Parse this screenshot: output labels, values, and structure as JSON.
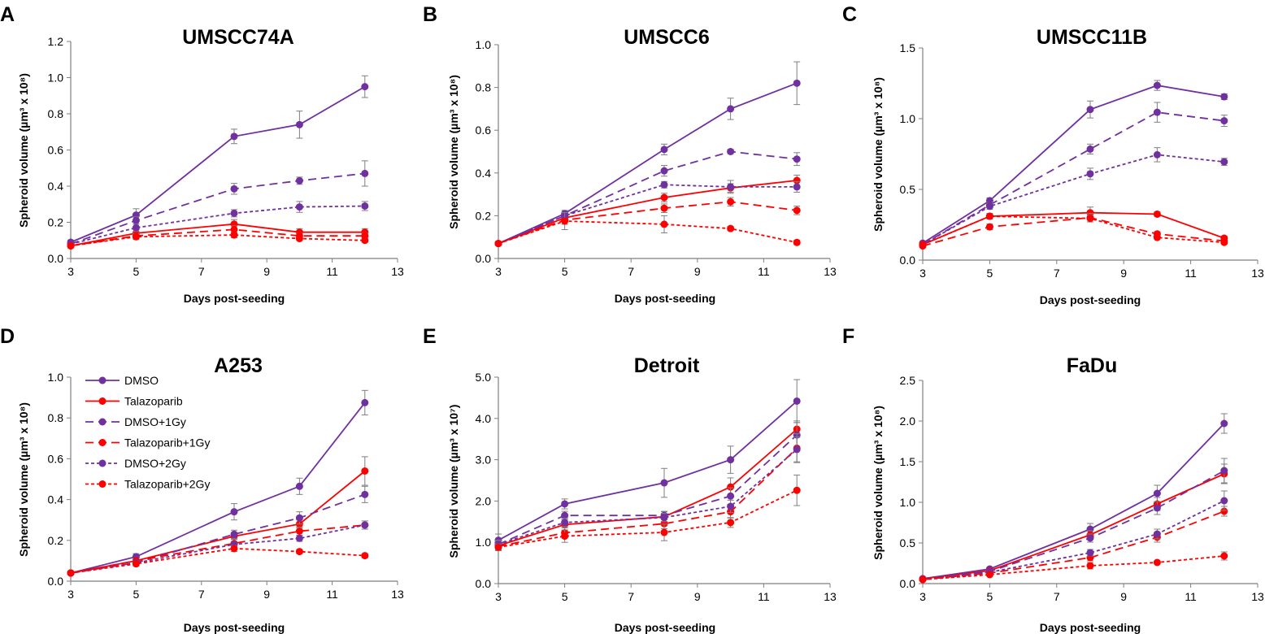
{
  "styles": {
    "colors": {
      "DMSO": "#7030A0",
      "Talazoparib": "#FF0000",
      "errorbar": "#7f7f7f",
      "axis": "#7f7f7f"
    }
  },
  "legend": {
    "entries": [
      {
        "name": "DMSO",
        "color": "#7030A0",
        "dash": "solid"
      },
      {
        "name": "Talazoparib",
        "color": "#FF0000",
        "dash": "solid"
      },
      {
        "name": "DMSO+1Gy",
        "color": "#7030A0",
        "dash": "long"
      },
      {
        "name": "Talazoparib+1Gy",
        "color": "#FF0000",
        "dash": "long"
      },
      {
        "name": "DMSO+2Gy",
        "color": "#7030A0",
        "dash": "short"
      },
      {
        "name": "Talazoparib+2Gy",
        "color": "#FF0000",
        "dash": "short"
      }
    ]
  },
  "chart_data": [
    {
      "panel": "A",
      "title": "UMSCC74A",
      "type": "line",
      "xlabel": "Days post-seeding",
      "ylabel": "Spheroid volume (µm³ x 10⁸)",
      "xlim": [
        3,
        13
      ],
      "xticks": [
        3,
        5,
        7,
        9,
        11,
        13
      ],
      "ylim": [
        0,
        1.2
      ],
      "yticks": [
        "0.0",
        "0.2",
        "0.4",
        "0.6",
        "0.8",
        "1.0",
        "1.2"
      ],
      "x": [
        3,
        5,
        8,
        10,
        12
      ],
      "series": [
        {
          "name": "DMSO",
          "values": [
            0.09,
            0.24,
            0.675,
            0.74,
            0.95
          ],
          "errors": [
            0.01,
            0.035,
            0.04,
            0.075,
            0.06
          ]
        },
        {
          "name": "Talazoparib",
          "values": [
            0.07,
            0.14,
            0.19,
            0.145,
            0.145
          ],
          "errors": [
            0.01,
            0.02,
            0.025,
            0.02,
            0.02
          ]
        },
        {
          "name": "DMSO+1Gy",
          "values": [
            0.08,
            0.21,
            0.385,
            0.43,
            0.47
          ],
          "errors": [
            0.01,
            0.02,
            0.03,
            0.02,
            0.07
          ]
        },
        {
          "name": "Talazoparib+1Gy",
          "values": [
            0.07,
            0.125,
            0.16,
            0.125,
            0.125
          ],
          "errors": [
            0.01,
            0.015,
            0.02,
            0.015,
            0.015
          ]
        },
        {
          "name": "DMSO+2Gy",
          "values": [
            0.08,
            0.17,
            0.25,
            0.285,
            0.29
          ],
          "errors": [
            0.01,
            0.02,
            0.02,
            0.03,
            0.025
          ]
        },
        {
          "name": "Talazoparib+2Gy",
          "values": [
            0.07,
            0.12,
            0.13,
            0.11,
            0.1
          ],
          "errors": [
            0.01,
            0.015,
            0.015,
            0.01,
            0.01
          ]
        }
      ]
    },
    {
      "panel": "B",
      "title": "UMSCC6",
      "type": "line",
      "xlabel": "Days post-seeding",
      "ylabel": "Spheroid volume (µm³ x 10⁸)",
      "xlim": [
        3,
        13
      ],
      "xticks": [
        3,
        5,
        7,
        9,
        11,
        13
      ],
      "ylim": [
        0,
        1.0
      ],
      "yticks": [
        "0.0",
        "0.2",
        "0.4",
        "0.6",
        "0.8",
        "1.0"
      ],
      "x": [
        3,
        5,
        8,
        10,
        12
      ],
      "series": [
        {
          "name": "DMSO",
          "values": [
            0.07,
            0.21,
            0.51,
            0.7,
            0.82
          ],
          "errors": [
            0.005,
            0.015,
            0.025,
            0.05,
            0.1
          ]
        },
        {
          "name": "Talazoparib",
          "values": [
            0.07,
            0.19,
            0.285,
            0.33,
            0.365
          ],
          "errors": [
            0.005,
            0.015,
            0.02,
            0.02,
            0.025
          ]
        },
        {
          "name": "DMSO+1Gy",
          "values": [
            0.07,
            0.2,
            0.41,
            0.5,
            0.465
          ],
          "errors": [
            0.005,
            0.015,
            0.025,
            0.01,
            0.03
          ]
        },
        {
          "name": "Talazoparib+1Gy",
          "values": [
            0.07,
            0.18,
            0.235,
            0.265,
            0.225
          ],
          "errors": [
            0.005,
            0.02,
            0.02,
            0.02,
            0.02
          ]
        },
        {
          "name": "DMSO+2Gy",
          "values": [
            0.07,
            0.2,
            0.345,
            0.335,
            0.335
          ],
          "errors": [
            0.005,
            0.01,
            0.015,
            0.03,
            0.025
          ]
        },
        {
          "name": "Talazoparib+2Gy",
          "values": [
            0.07,
            0.175,
            0.16,
            0.14,
            0.075
          ],
          "errors": [
            0.005,
            0.04,
            0.04,
            0.01,
            0.01
          ]
        }
      ]
    },
    {
      "panel": "C",
      "title": "UMSCC11B",
      "type": "line",
      "xlabel": "Days post-seeding",
      "ylabel": "Spheroid volume (µm³ x 10⁸)",
      "xlim": [
        3,
        13
      ],
      "xticks": [
        3,
        5,
        7,
        9,
        11,
        13
      ],
      "ylim": [
        0,
        1.5
      ],
      "yticks": [
        "0.0",
        "0.5",
        "1.0",
        "1.5"
      ],
      "x": [
        3,
        5,
        8,
        10,
        12
      ],
      "series": [
        {
          "name": "DMSO",
          "values": [
            0.12,
            0.42,
            1.065,
            1.235,
            1.155
          ],
          "errors": [
            0.01,
            0.02,
            0.06,
            0.035,
            0.02
          ]
        },
        {
          "name": "Talazoparib",
          "values": [
            0.11,
            0.31,
            0.335,
            0.325,
            0.155
          ],
          "errors": [
            0.01,
            0.02,
            0.04,
            0.015,
            0.015
          ]
        },
        {
          "name": "DMSO+1Gy",
          "values": [
            0.11,
            0.39,
            0.785,
            1.045,
            0.985
          ],
          "errors": [
            0.01,
            0.02,
            0.035,
            0.07,
            0.04
          ]
        },
        {
          "name": "Talazoparib+1Gy",
          "values": [
            0.1,
            0.235,
            0.3,
            0.185,
            0.135
          ],
          "errors": [
            0.01,
            0.02,
            0.03,
            0.015,
            0.01
          ]
        },
        {
          "name": "DMSO+2Gy",
          "values": [
            0.11,
            0.38,
            0.61,
            0.745,
            0.695
          ],
          "errors": [
            0.01,
            0.02,
            0.04,
            0.05,
            0.025
          ]
        },
        {
          "name": "Talazoparib+2Gy",
          "values": [
            0.11,
            0.31,
            0.295,
            0.16,
            0.125
          ],
          "errors": [
            0.01,
            0.015,
            0.025,
            0.01,
            0.01
          ]
        }
      ]
    },
    {
      "panel": "D",
      "title": "A253",
      "type": "line",
      "xlabel": "Days post-seeding",
      "ylabel": "Spheroid volume (µm³ x 10⁸)",
      "xlim": [
        3,
        13
      ],
      "xticks": [
        3,
        5,
        7,
        9,
        11,
        13
      ],
      "ylim": [
        0,
        1.0
      ],
      "yticks": [
        "0.0",
        "0.2",
        "0.4",
        "0.6",
        "0.8",
        "1.0"
      ],
      "x": [
        3,
        5,
        8,
        10,
        12
      ],
      "series": [
        {
          "name": "DMSO",
          "values": [
            0.04,
            0.12,
            0.34,
            0.465,
            0.875
          ],
          "errors": [
            0.005,
            0.015,
            0.04,
            0.04,
            0.06
          ]
        },
        {
          "name": "Talazoparib",
          "values": [
            0.04,
            0.1,
            0.22,
            0.28,
            0.54
          ],
          "errors": [
            0.005,
            0.01,
            0.015,
            0.02,
            0.07
          ]
        },
        {
          "name": "DMSO+1Gy",
          "values": [
            0.04,
            0.09,
            0.23,
            0.31,
            0.425
          ],
          "errors": [
            0.005,
            0.015,
            0.02,
            0.03,
            0.04
          ]
        },
        {
          "name": "Talazoparib+1Gy",
          "values": [
            0.04,
            0.1,
            0.185,
            0.245,
            0.275
          ],
          "errors": [
            0.005,
            0.01,
            0.02,
            0.02,
            0.02
          ]
        },
        {
          "name": "DMSO+2Gy",
          "values": [
            0.04,
            0.09,
            0.18,
            0.21,
            0.275
          ],
          "errors": [
            0.005,
            0.01,
            0.015,
            0.015,
            0.02
          ]
        },
        {
          "name": "Talazoparib+2Gy",
          "values": [
            0.04,
            0.085,
            0.16,
            0.145,
            0.125
          ],
          "errors": [
            0.005,
            0.01,
            0.015,
            0.01,
            0.01
          ]
        }
      ]
    },
    {
      "panel": "E",
      "title": "Detroit",
      "type": "line",
      "xlabel": "Days post-seeding",
      "ylabel": "Spheroid volume (µm³ x 10⁷)",
      "xlim": [
        3,
        13
      ],
      "xticks": [
        3,
        5,
        7,
        9,
        11,
        13
      ],
      "ylim": [
        0,
        5.0
      ],
      "yticks": [
        "0.0",
        "1.0",
        "2.0",
        "3.0",
        "4.0",
        "5.0"
      ],
      "x": [
        3,
        5,
        8,
        10,
        12
      ],
      "series": [
        {
          "name": "DMSO",
          "values": [
            1.05,
            1.93,
            2.44,
            3.0,
            4.42
          ],
          "errors": [
            0.15,
            0.12,
            0.35,
            0.33,
            0.52
          ]
        },
        {
          "name": "Talazoparib",
          "values": [
            0.92,
            1.43,
            1.62,
            2.34,
            3.74
          ],
          "errors": [
            0.1,
            0.15,
            0.12,
            0.22,
            0.2
          ]
        },
        {
          "name": "DMSO+1Gy",
          "values": [
            0.95,
            1.65,
            1.65,
            2.12,
            3.6
          ],
          "errors": [
            0.1,
            0.1,
            0.1,
            0.2,
            0.3
          ]
        },
        {
          "name": "Talazoparib+1Gy",
          "values": [
            0.9,
            1.23,
            1.45,
            1.74,
            3.28
          ],
          "errors": [
            0.1,
            0.12,
            0.12,
            0.15,
            0.35
          ]
        },
        {
          "name": "DMSO+2Gy",
          "values": [
            0.95,
            1.48,
            1.6,
            1.87,
            3.25
          ],
          "errors": [
            0.1,
            0.1,
            0.1,
            0.15,
            0.3
          ]
        },
        {
          "name": "Talazoparib+2Gy",
          "values": [
            0.88,
            1.15,
            1.24,
            1.48,
            2.26
          ],
          "errors": [
            0.08,
            0.15,
            0.2,
            0.12,
            0.37
          ]
        }
      ]
    },
    {
      "panel": "F",
      "title": "FaDu",
      "type": "line",
      "xlabel": "Days post-seeding",
      "ylabel": "Spheroid volume (µm³ x 10⁸)",
      "xlim": [
        3,
        13
      ],
      "xticks": [
        3,
        5,
        7,
        9,
        11,
        13
      ],
      "ylim": [
        0,
        2.5
      ],
      "yticks": [
        "0.0",
        "0.5",
        "1.0",
        "1.5",
        "2.0",
        "2.5"
      ],
      "x": [
        3,
        5,
        8,
        10,
        12
      ],
      "series": [
        {
          "name": "DMSO",
          "values": [
            0.06,
            0.18,
            0.67,
            1.11,
            1.97
          ],
          "errors": [
            0.01,
            0.02,
            0.07,
            0.1,
            0.12
          ]
        },
        {
          "name": "Talazoparib",
          "values": [
            0.06,
            0.16,
            0.6,
            0.98,
            1.35
          ],
          "errors": [
            0.01,
            0.02,
            0.05,
            0.08,
            0.12
          ]
        },
        {
          "name": "DMSO+1Gy",
          "values": [
            0.06,
            0.15,
            0.56,
            0.93,
            1.39
          ],
          "errors": [
            0.01,
            0.02,
            0.05,
            0.08,
            0.15
          ]
        },
        {
          "name": "Talazoparib+1Gy",
          "values": [
            0.05,
            0.13,
            0.32,
            0.57,
            0.89
          ],
          "errors": [
            0.01,
            0.02,
            0.04,
            0.06,
            0.06
          ]
        },
        {
          "name": "DMSO+2Gy",
          "values": [
            0.05,
            0.14,
            0.38,
            0.61,
            1.02
          ],
          "errors": [
            0.01,
            0.02,
            0.04,
            0.06,
            0.12
          ]
        },
        {
          "name": "Talazoparib+2Gy",
          "values": [
            0.05,
            0.11,
            0.22,
            0.26,
            0.34
          ],
          "errors": [
            0.01,
            0.02,
            0.04,
            0.02,
            0.05
          ]
        }
      ]
    }
  ]
}
